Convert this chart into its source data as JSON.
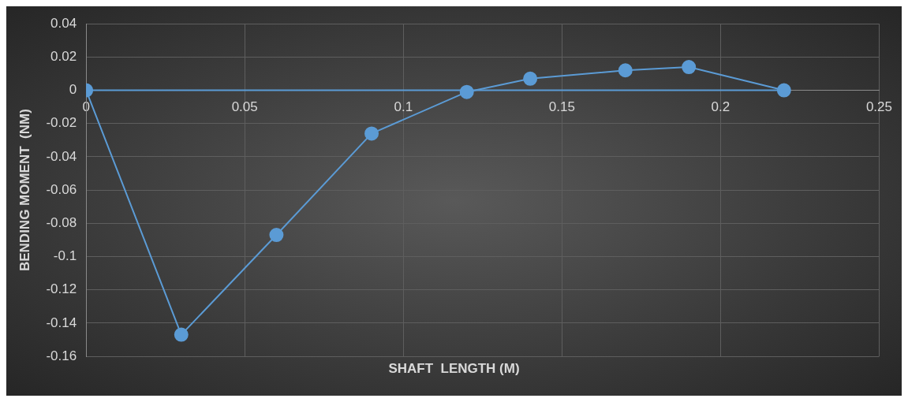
{
  "chart_data": {
    "type": "line",
    "xlabel": "SHAFT  LENGTH (M)",
    "ylabel": "BENDING MOMENT  (NM)",
    "series": [
      {
        "x": [
          0,
          0.03,
          0.06,
          0.09,
          0.12,
          0.14,
          0.17,
          0.19,
          0.22
        ],
        "values": [
          0,
          -0.147,
          -0.087,
          -0.026,
          -0.001,
          0.007,
          0.012,
          0.014,
          0
        ],
        "color": "#5b9bd5"
      },
      {
        "x": [
          0,
          0.22
        ],
        "values": [
          0,
          0
        ],
        "color": "#5b9bd5",
        "marker": "none"
      }
    ],
    "xlim": [
      0,
      0.25
    ],
    "xticks": [
      0,
      0.05,
      0.1,
      0.15,
      0.2,
      0.25
    ],
    "ylim": [
      -0.16,
      0.04
    ],
    "yticks": [
      -0.16,
      -0.14,
      -0.12,
      -0.1,
      -0.08,
      -0.06,
      -0.04,
      -0.02,
      0,
      0.02,
      0.04
    ],
    "grid": true,
    "marker": "circle",
    "line_style": "solid",
    "legend": false
  }
}
